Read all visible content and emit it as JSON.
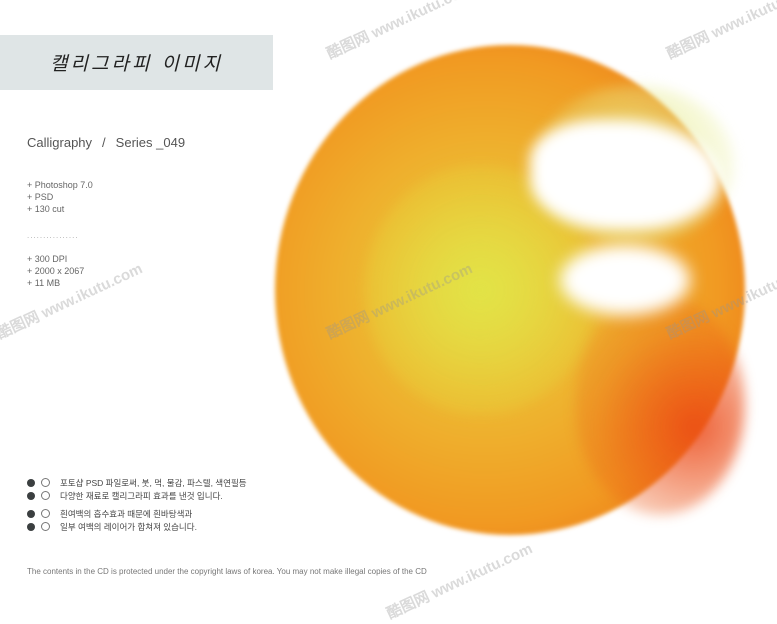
{
  "header": {
    "title": "캘리그라피 이미지"
  },
  "series": {
    "category": "Calligraphy",
    "separator": "/",
    "name": "Series _049"
  },
  "specs_group1": [
    "+ Photoshop 7.0",
    "+ PSD",
    "+ 130 cut"
  ],
  "divider": "................",
  "specs_group2": [
    "+ 300 DPI",
    "+ 2000 x 2067",
    "+ 11 MB"
  ],
  "notes": [
    "포토샵 PSD 파일로써, 붓, 먹, 물감, 파스텔, 색연필등",
    "다양한 재료로 캘리그라피 효과를 낸것 입니다.",
    "흰여백의 흡수효과 때문에 흰바탕색과",
    "일부 여백의 레이어가 합쳐져 있습니다."
  ],
  "copyright": "The contents in the CD is protected under the copyright laws of korea. You may not make illegal copies of the CD",
  "watermark": "酷图网 www.ikutu.com",
  "colors": {
    "band": "#dfe5e6",
    "orange": "#f08a1c",
    "yellow": "#e8e040",
    "red": "#e8501a",
    "bullet": "#3b3f40"
  }
}
